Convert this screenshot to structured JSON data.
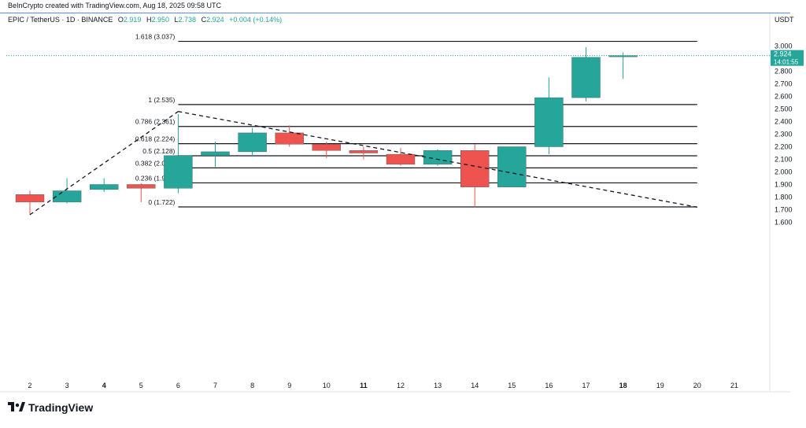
{
  "header": {
    "credit": "BeInCrypto created with TradingView.com, Aug 18, 2025 09:58 UTC",
    "currency": "USDT"
  },
  "legend": {
    "symbol": "EPIC / TetherUS · 1D · BINANCE",
    "o_label": "O",
    "o_value": "2.919",
    "h_label": "H",
    "h_value": "2.950",
    "l_label": "L",
    "l_value": "2.738",
    "c_label": "C",
    "c_value": "2.924",
    "change": "+0.004 (+0.14%)"
  },
  "footer": {
    "brand": "TradingView",
    "icon": "tradingview-logo-icon"
  },
  "colors": {
    "up": "#26a69a",
    "down": "#ef5350",
    "grid_line": "#131722",
    "price_tag": "#26a69a",
    "header_rule": "#2962ff"
  },
  "chart_data": {
    "type": "candlestick",
    "x_tick_labels": [
      "2",
      "3",
      "4",
      "5",
      "6",
      "7",
      "8",
      "9",
      "10",
      "11",
      "12",
      "13",
      "14",
      "15",
      "16",
      "17",
      "18",
      "19",
      "20",
      "21"
    ],
    "bold_x_ticks": [
      "4",
      "11",
      "18"
    ],
    "y_tick_labels": [
      "1.600",
      "1.700",
      "1.800",
      "1.900",
      "2.000",
      "2.100",
      "2.200",
      "2.300",
      "2.400",
      "2.500",
      "2.600",
      "2.700",
      "2.800",
      "2.900",
      "3.000"
    ],
    "ylim": [
      1.58,
      3.1
    ],
    "candles": [
      {
        "x": "2",
        "open": 1.82,
        "high": 1.85,
        "low": 1.66,
        "close": 1.76
      },
      {
        "x": "3",
        "open": 1.76,
        "high": 1.95,
        "low": 1.75,
        "close": 1.85
      },
      {
        "x": "4",
        "open": 1.86,
        "high": 1.95,
        "low": 1.84,
        "close": 1.9
      },
      {
        "x": "5",
        "open": 1.9,
        "high": 1.91,
        "low": 1.76,
        "close": 1.87
      },
      {
        "x": "6",
        "open": 1.87,
        "high": 2.46,
        "low": 1.83,
        "close": 2.13
      },
      {
        "x": "7",
        "open": 2.13,
        "high": 2.24,
        "low": 2.04,
        "close": 2.16
      },
      {
        "x": "8",
        "open": 2.16,
        "high": 2.35,
        "low": 2.12,
        "close": 2.31
      },
      {
        "x": "9",
        "open": 2.31,
        "high": 2.37,
        "low": 2.2,
        "close": 2.22
      },
      {
        "x": "10",
        "open": 2.22,
        "high": 2.24,
        "low": 2.11,
        "close": 2.17
      },
      {
        "x": "11",
        "open": 2.17,
        "high": 2.2,
        "low": 2.1,
        "close": 2.15
      },
      {
        "x": "12",
        "open": 2.14,
        "high": 2.19,
        "low": 2.05,
        "close": 2.06
      },
      {
        "x": "13",
        "open": 2.06,
        "high": 2.18,
        "low": 2.05,
        "close": 2.17
      },
      {
        "x": "14",
        "open": 2.17,
        "high": 2.22,
        "low": 1.72,
        "close": 1.88
      },
      {
        "x": "15",
        "open": 1.88,
        "high": 2.2,
        "low": 1.88,
        "close": 2.2
      },
      {
        "x": "16",
        "open": 2.2,
        "high": 2.75,
        "low": 2.14,
        "close": 2.59
      },
      {
        "x": "17",
        "open": 2.59,
        "high": 2.99,
        "low": 2.56,
        "close": 2.91
      },
      {
        "x": "18",
        "open": 2.919,
        "high": 2.95,
        "low": 2.738,
        "close": 2.924
      }
    ],
    "fib_levels": [
      {
        "label": "1.618 (3.037)",
        "value": 3.037
      },
      {
        "label": "1 (2.535)",
        "value": 2.535
      },
      {
        "label": "0.786 (2.361)",
        "value": 2.361
      },
      {
        "label": "0.618 (2.224)",
        "value": 2.224
      },
      {
        "label": "0.5 (2.128)",
        "value": 2.128
      },
      {
        "label": "0.382 (2.032)",
        "value": 2.032
      },
      {
        "label": "0.236 (1.913)",
        "value": 1.913
      },
      {
        "label": "0 (1.722)",
        "value": 1.722
      }
    ],
    "fib_start_x": "6",
    "fib_end_x": "20",
    "trend_lines": [
      {
        "from": {
          "x": "2",
          "y": 1.66
        },
        "to": {
          "x": "6",
          "y": 2.48
        }
      },
      {
        "from": {
          "x": "6",
          "y": 2.48
        },
        "to": {
          "x": "20",
          "y": 1.72
        }
      }
    ],
    "last_price": {
      "value": "2.924",
      "y": 2.924,
      "countdown": "14:01:55"
    }
  }
}
